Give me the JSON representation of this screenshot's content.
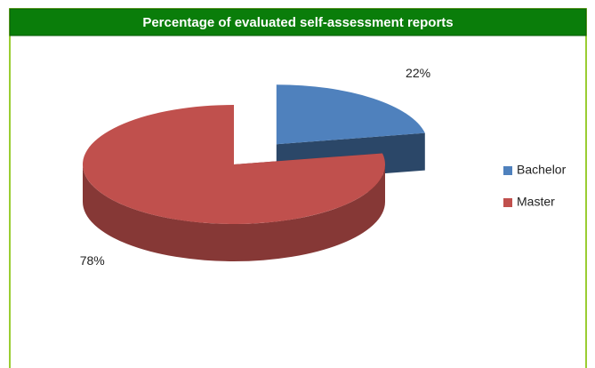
{
  "chart_data": {
    "type": "pie",
    "title": "Percentage of evaluated self-assessment reports",
    "categories": [
      "Bachelor",
      "Master"
    ],
    "values": [
      22,
      78
    ],
    "value_labels": [
      "22%",
      "78%"
    ],
    "colors": [
      "#4f81bd",
      "#c0504d"
    ],
    "legend": "right",
    "exploded": [
      true,
      false
    ]
  }
}
